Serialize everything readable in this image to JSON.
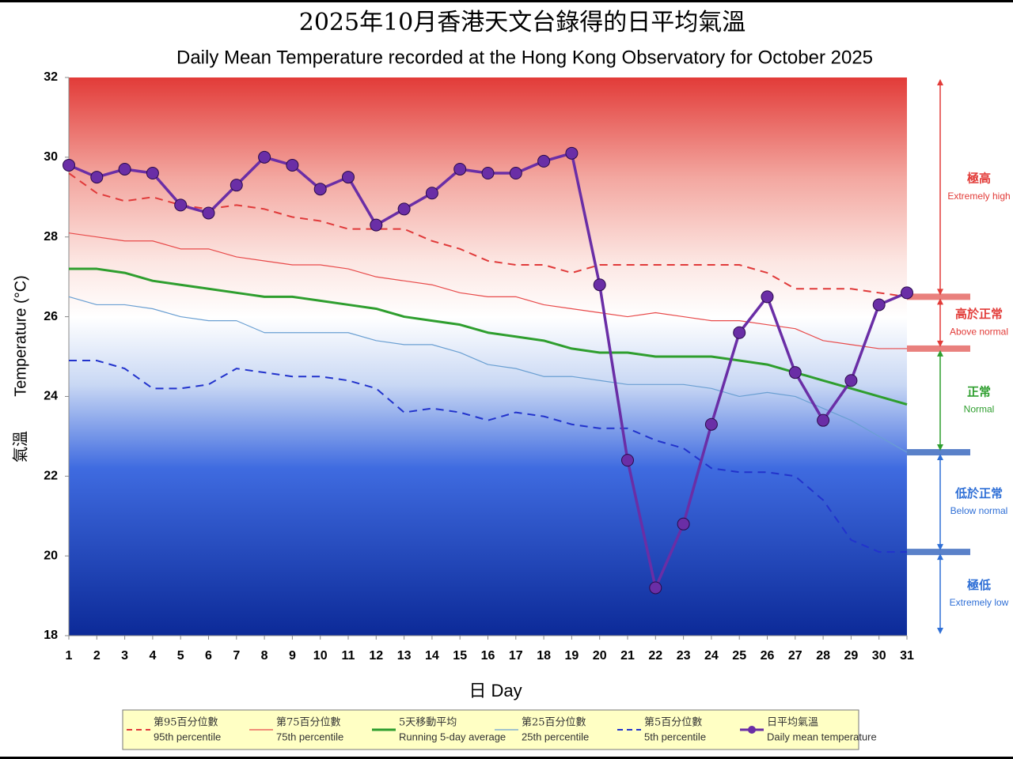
{
  "chart_data": {
    "type": "line",
    "title": "2025年10月香港天文台錄得的日平均氣溫",
    "subtitle": "Daily Mean Temperature recorded at the Hong Kong Observatory for October 2025",
    "x_label": "日 Day",
    "y_label_zh": "氣溫",
    "y_label": "Temperature (°C)",
    "x": [
      1,
      2,
      3,
      4,
      5,
      6,
      7,
      8,
      9,
      10,
      11,
      12,
      13,
      14,
      15,
      16,
      17,
      18,
      19,
      20,
      21,
      22,
      23,
      24,
      25,
      26,
      27,
      28,
      29,
      30,
      31
    ],
    "xlim": [
      1,
      31
    ],
    "xticks": [
      1,
      2,
      3,
      4,
      5,
      6,
      7,
      8,
      9,
      10,
      11,
      12,
      13,
      14,
      15,
      16,
      17,
      18,
      19,
      20,
      21,
      22,
      23,
      24,
      25,
      26,
      27,
      28,
      29,
      30,
      31
    ],
    "ylim": [
      18,
      32
    ],
    "yticks": [
      18,
      20,
      22,
      24,
      26,
      28,
      30,
      32
    ],
    "series": [
      {
        "name": "95th percentile",
        "name_zh": "第95百分位數",
        "color": "#e03a3a",
        "dash": true,
        "width": 2,
        "values": [
          29.6,
          29.1,
          28.9,
          29.0,
          28.8,
          28.7,
          28.8,
          28.7,
          28.5,
          28.4,
          28.2,
          28.2,
          28.2,
          27.9,
          27.7,
          27.4,
          27.3,
          27.3,
          27.1,
          27.3,
          27.3,
          27.3,
          27.3,
          27.3,
          27.3,
          27.1,
          26.7,
          26.7,
          26.7,
          26.6,
          26.5
        ]
      },
      {
        "name": "75th percentile",
        "name_zh": "第75百分位數",
        "color": "#e84a4a",
        "dash": false,
        "width": 1.2,
        "values": [
          28.1,
          28.0,
          27.9,
          27.9,
          27.7,
          27.7,
          27.5,
          27.4,
          27.3,
          27.3,
          27.2,
          27.0,
          26.9,
          26.8,
          26.6,
          26.5,
          26.5,
          26.3,
          26.2,
          26.1,
          26.0,
          26.1,
          26.0,
          25.9,
          25.9,
          25.8,
          25.7,
          25.4,
          25.3,
          25.2,
          25.2
        ]
      },
      {
        "name": "Running 5-day average",
        "name_zh": "5天移動平均",
        "color": "#2e9e2e",
        "dash": false,
        "width": 3,
        "values": [
          27.2,
          27.2,
          27.1,
          26.9,
          26.8,
          26.7,
          26.6,
          26.5,
          26.5,
          26.4,
          26.3,
          26.2,
          26.0,
          25.9,
          25.8,
          25.6,
          25.5,
          25.4,
          25.2,
          25.1,
          25.1,
          25.0,
          25.0,
          25.0,
          24.9,
          24.8,
          24.6,
          24.4,
          24.2,
          24.0,
          23.8
        ]
      },
      {
        "name": "25th percentile",
        "name_zh": "第25百分位數",
        "color": "#6a9fd2",
        "dash": false,
        "width": 1.2,
        "values": [
          26.5,
          26.3,
          26.3,
          26.2,
          26.0,
          25.9,
          25.9,
          25.6,
          25.6,
          25.6,
          25.6,
          25.4,
          25.3,
          25.3,
          25.1,
          24.8,
          24.7,
          24.5,
          24.5,
          24.4,
          24.3,
          24.3,
          24.3,
          24.2,
          24.0,
          24.1,
          24.0,
          23.7,
          23.4,
          23.0,
          22.6
        ]
      },
      {
        "name": "5th percentile",
        "name_zh": "第5百分位數",
        "color": "#2233cc",
        "dash": true,
        "width": 2,
        "values": [
          24.9,
          24.9,
          24.7,
          24.2,
          24.2,
          24.3,
          24.7,
          24.6,
          24.5,
          24.5,
          24.4,
          24.2,
          23.6,
          23.7,
          23.6,
          23.4,
          23.6,
          23.5,
          23.3,
          23.2,
          23.2,
          22.9,
          22.7,
          22.2,
          22.1,
          22.1,
          22.0,
          21.4,
          20.4,
          20.1,
          20.1
        ]
      },
      {
        "name": "Daily mean temperature",
        "name_zh": "日平均氣溫",
        "color": "#6a2ea6",
        "dash": false,
        "width": 3.5,
        "marker": true,
        "values": [
          29.8,
          29.5,
          29.7,
          29.6,
          28.8,
          28.6,
          29.3,
          30.0,
          29.8,
          29.2,
          29.5,
          28.3,
          28.7,
          29.1,
          29.7,
          29.6,
          29.6,
          29.9,
          30.1,
          26.8,
          22.4,
          19.2,
          20.8,
          23.3,
          25.6,
          26.5,
          24.6,
          23.4,
          24.4,
          26.3,
          26.6
        ]
      }
    ],
    "categories_bands": [
      {
        "zh": "極高",
        "en": "Extremely high"
      },
      {
        "zh": "高於正常",
        "en": "Above normal"
      },
      {
        "zh": "正常",
        "en": "Normal"
      },
      {
        "zh": "低於正常",
        "en": "Below normal"
      },
      {
        "zh": "極低",
        "en": "Extremely low"
      }
    ]
  }
}
